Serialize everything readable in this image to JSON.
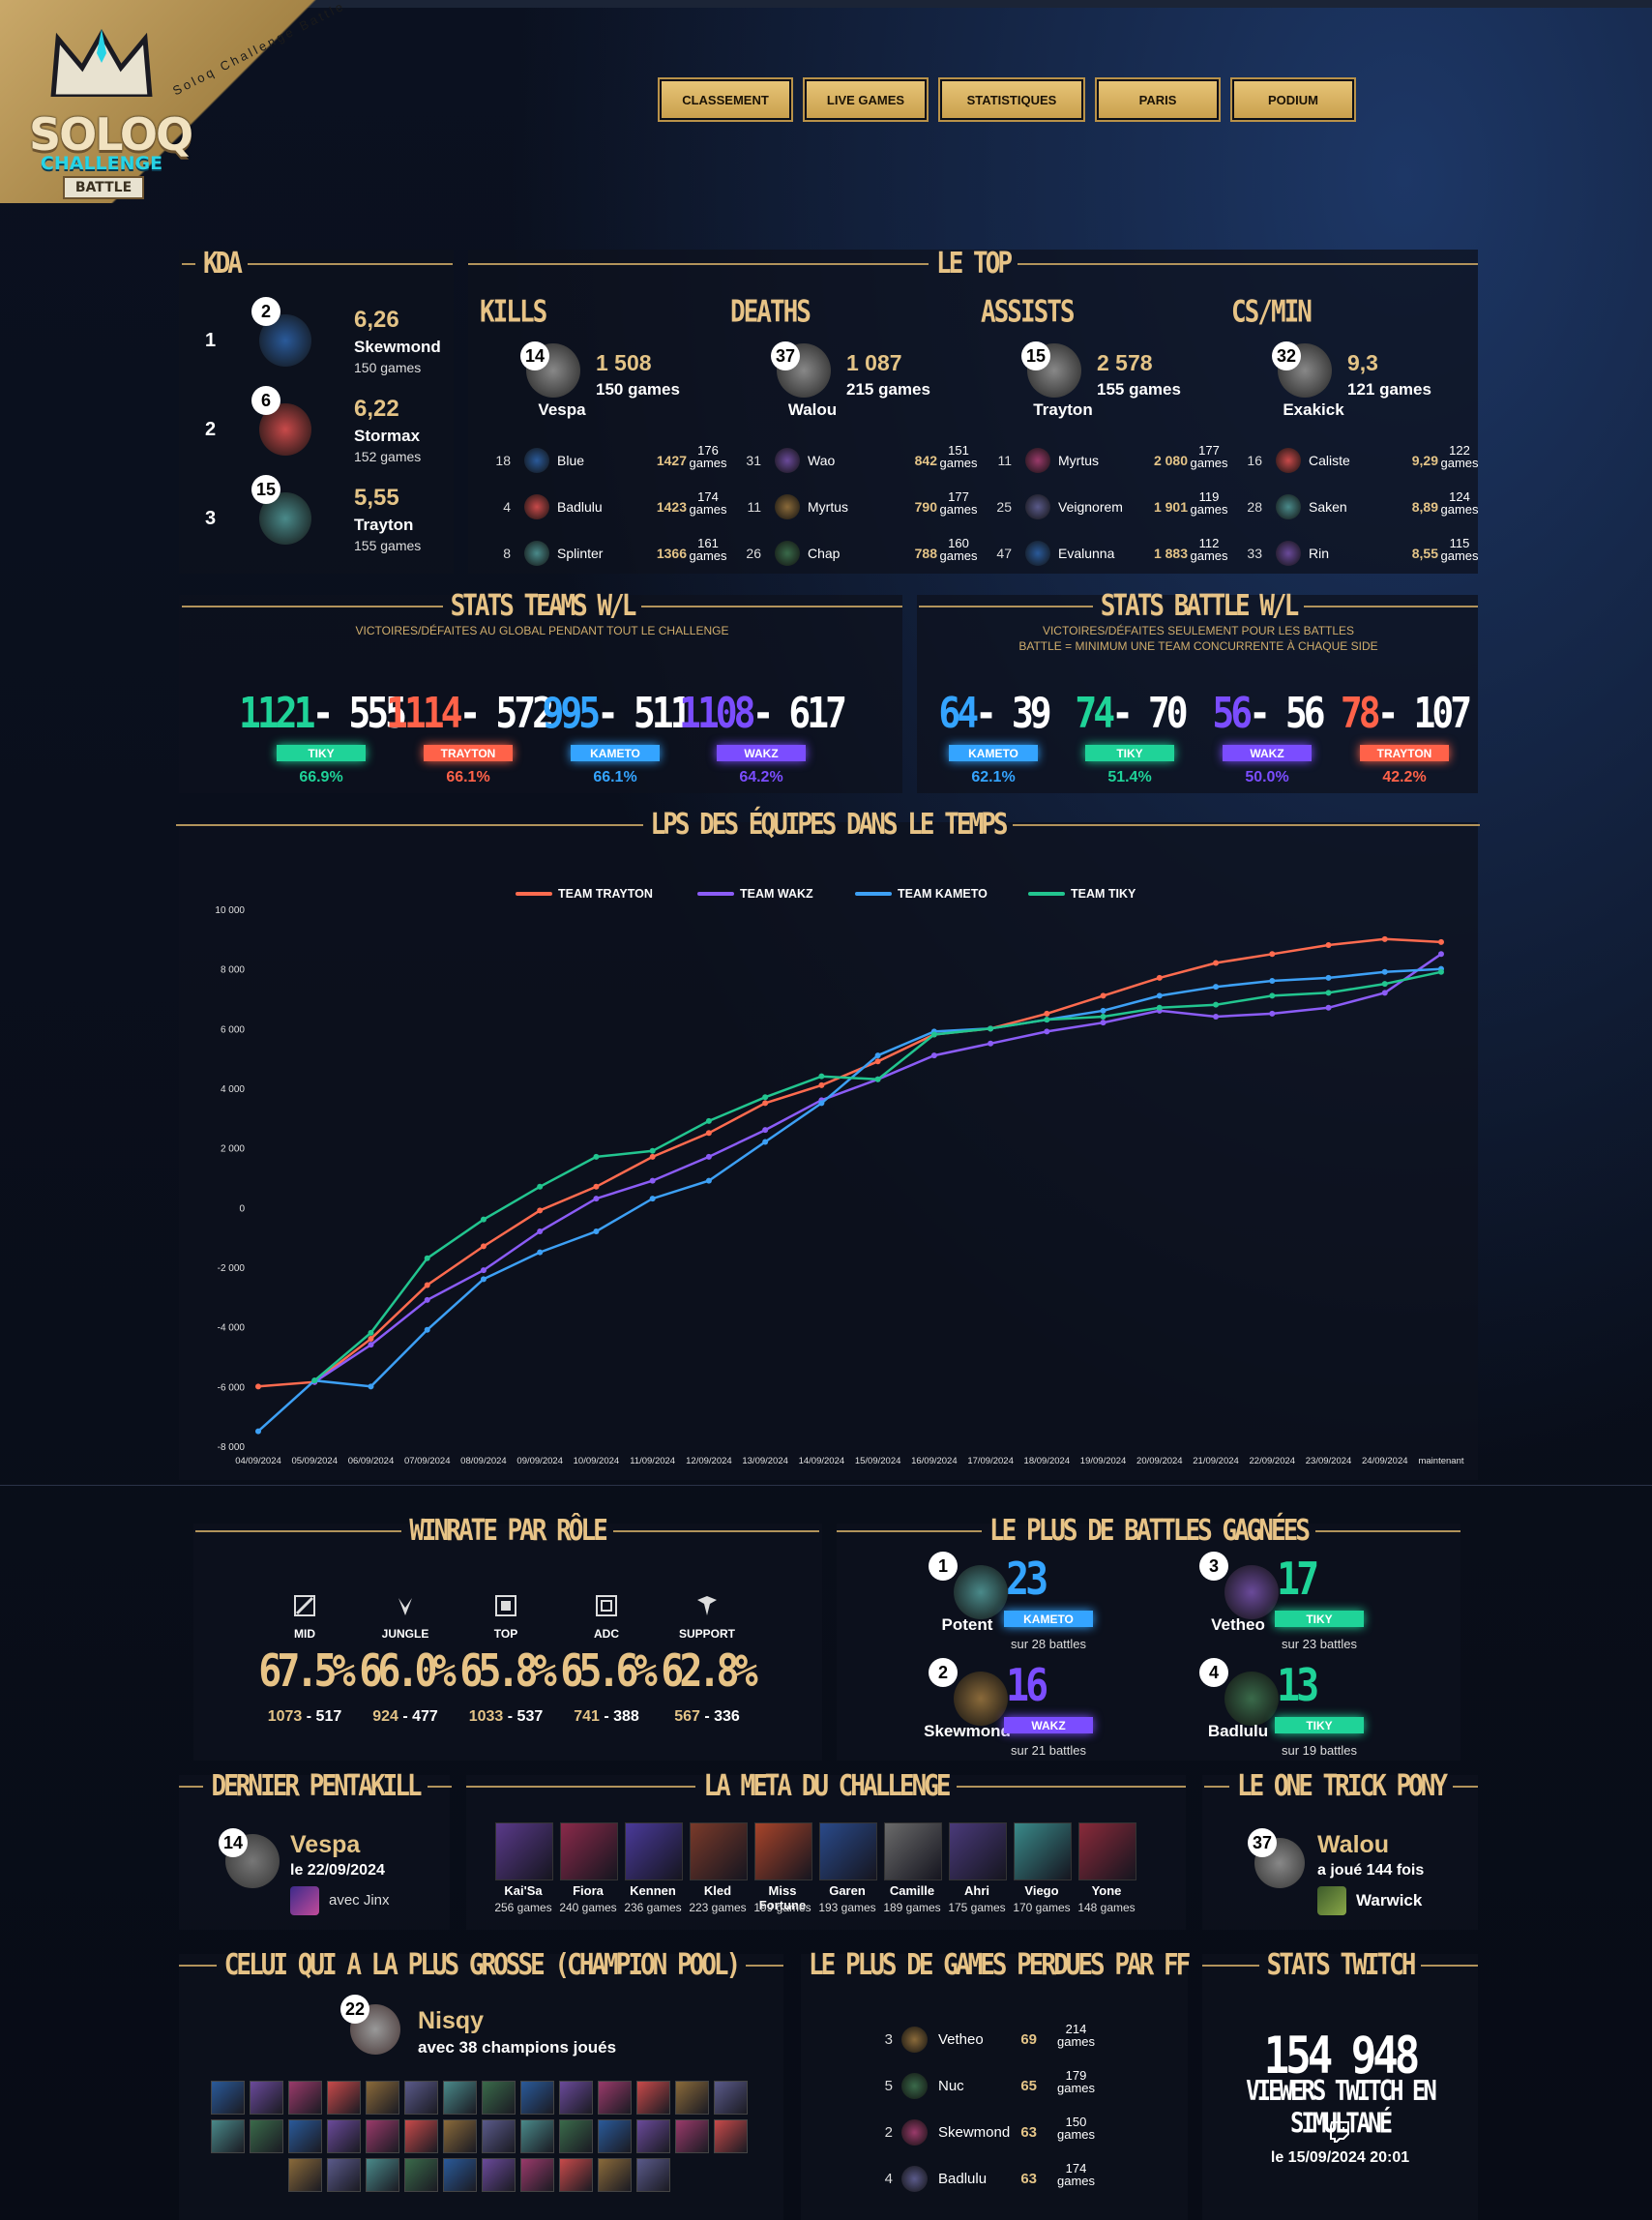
{
  "header": {
    "logo_line1": "SOLOQ",
    "logo_line2": "CHALLENGE",
    "logo_line3": "BATTLE",
    "tagline": "Soloq Challenge Battle",
    "nav": [
      "CLASSEMENT",
      "LIVE GAMES",
      "STATISTIQUES",
      "PARIS",
      "PODIUM"
    ]
  },
  "kda": {
    "title": "KDA",
    "rows": [
      {
        "pos": "1",
        "rank": "2",
        "value": "6,26",
        "name": "Skewmond",
        "games": "150 games"
      },
      {
        "pos": "2",
        "rank": "6",
        "value": "6,22",
        "name": "Stormax",
        "games": "152 games"
      },
      {
        "pos": "3",
        "rank": "15",
        "value": "5,55",
        "name": "Trayton",
        "games": "155 games"
      }
    ]
  },
  "top": {
    "title": "LE TOP",
    "cols": [
      {
        "head": "KILLS",
        "rank": "14",
        "value": "1 508",
        "games": "150 games",
        "name": "Vespa",
        "rows": [
          {
            "rank": "18",
            "name": "Blue",
            "value": "1427",
            "games1": "176",
            "games2": "games"
          },
          {
            "rank": "4",
            "name": "Badlulu",
            "value": "1423",
            "games1": "174",
            "games2": "games"
          },
          {
            "rank": "8",
            "name": "Splinter",
            "value": "1366",
            "games1": "161",
            "games2": "games"
          }
        ]
      },
      {
        "head": "DEATHS",
        "rank": "37",
        "value": "1 087",
        "games": "215 games",
        "name": "Walou",
        "rows": [
          {
            "rank": "31",
            "name": "Wao",
            "value": "842",
            "games1": "151",
            "games2": "games"
          },
          {
            "rank": "11",
            "name": "Myrtus",
            "value": "790",
            "games1": "177",
            "games2": "games"
          },
          {
            "rank": "26",
            "name": "Chap",
            "value": "788",
            "games1": "160",
            "games2": "games"
          }
        ]
      },
      {
        "head": "ASSISTS",
        "rank": "15",
        "value": "2 578",
        "games": "155 games",
        "name": "Trayton",
        "rows": [
          {
            "rank": "11",
            "name": "Myrtus",
            "value": "2 080",
            "games1": "177",
            "games2": "games"
          },
          {
            "rank": "25",
            "name": "Veignorem",
            "value": "1 901",
            "games1": "119",
            "games2": "games"
          },
          {
            "rank": "47",
            "name": "Evalunna",
            "value": "1 883",
            "games1": "112",
            "games2": "games"
          }
        ]
      },
      {
        "head": "CS/MIN",
        "rank": "32",
        "value": "9,3",
        "games": "121 games",
        "name": "Exakick",
        "rows": [
          {
            "rank": "16",
            "name": "Caliste",
            "value": "9,29",
            "games1": "122",
            "games2": "games"
          },
          {
            "rank": "28",
            "name": "Saken",
            "value": "8,89",
            "games1": "124",
            "games2": "games"
          },
          {
            "rank": "33",
            "name": "Rin",
            "value": "8,55",
            "games1": "115",
            "games2": "games"
          }
        ]
      }
    ]
  },
  "teams_wl": {
    "title": "STATS TEAMS W/L",
    "subtitle": "VICTOIRES/DÉFAITES AU GLOBAL PENDANT TOUT LE CHALLENGE",
    "items": [
      {
        "wins": "1121",
        "losses": "- 555",
        "team": "TIKY",
        "pct": "66.9%",
        "color": "#1fd398"
      },
      {
        "wins": "1114",
        "losses": "- 572",
        "team": "TRAYTON",
        "pct": "66.1%",
        "color": "#ff6249"
      },
      {
        "wins": "995",
        "losses": "- 511",
        "team": "KAMETO",
        "pct": "66.1%",
        "color": "#34a4ff"
      },
      {
        "wins": "1108",
        "losses": "- 617",
        "team": "WAKZ",
        "pct": "64.2%",
        "color": "#7b4dff"
      }
    ]
  },
  "battle_wl": {
    "title": "STATS BATTLE W/L",
    "subtitle1": "VICTOIRES/DÉFAITES SEULEMENT POUR LES BATTLES",
    "subtitle2": "BATTLE = MINIMUM UNE TEAM CONCURRENTE À CHAQUE SIDE",
    "items": [
      {
        "wins": "64",
        "losses": "- 39",
        "team": "KAMETO",
        "pct": "62.1%",
        "color": "#34a4ff"
      },
      {
        "wins": "74",
        "losses": "- 70",
        "team": "TIKY",
        "pct": "51.4%",
        "color": "#1fd398"
      },
      {
        "wins": "56",
        "losses": "- 56",
        "team": "WAKZ",
        "pct": "50.0%",
        "color": "#7b4dff"
      },
      {
        "wins": "78",
        "losses": "- 107",
        "team": "TRAYTON",
        "pct": "42.2%",
        "color": "#ff6249"
      }
    ]
  },
  "chart_data": {
    "type": "line",
    "title": "LPS DES ÉQUIPES DANS LE TEMPS",
    "x": [
      "04/09/2024",
      "05/09/2024",
      "06/09/2024",
      "07/09/2024",
      "08/09/2024",
      "09/09/2024",
      "10/09/2024",
      "11/09/2024",
      "12/09/2024",
      "13/09/2024",
      "14/09/2024",
      "15/09/2024",
      "16/09/2024",
      "17/09/2024",
      "18/09/2024",
      "19/09/2024",
      "20/09/2024",
      "21/09/2024",
      "22/09/2024",
      "23/09/2024",
      "24/09/2024",
      "maintenant"
    ],
    "ylim": [
      -8000,
      10000
    ],
    "yticks": [
      "10 000",
      "8 000",
      "6 000",
      "4 000",
      "2 000",
      "0",
      "-2 000",
      "-4 000",
      "-6 000",
      "-8 000"
    ],
    "ytick_values": [
      10000,
      8000,
      6000,
      4000,
      2000,
      0,
      -2000,
      -4000,
      -6000,
      -8000
    ],
    "legend_position": "top",
    "grid": false,
    "series": [
      {
        "name": "TEAM TRAYTON",
        "color": "#ff6b4f",
        "values": [
          -6000,
          -5850,
          -4400,
          -2600,
          -1300,
          -100,
          700,
          1700,
          2500,
          3500,
          4100,
          4900,
          5800,
          6000,
          6500,
          7100,
          7700,
          8200,
          8500,
          8800,
          9000,
          8900
        ]
      },
      {
        "name": "TEAM WAKZ",
        "color": "#8b5cf6",
        "values": [
          null,
          -5850,
          -4600,
          -3100,
          -2100,
          -800,
          300,
          900,
          1700,
          2600,
          3600,
          4300,
          5100,
          5500,
          5900,
          6200,
          6600,
          6400,
          6500,
          6700,
          7200,
          8500
        ]
      },
      {
        "name": "TEAM KAMETO",
        "color": "#3da0f5",
        "values": [
          -7500,
          -5800,
          -6000,
          -4100,
          -2400,
          -1500,
          -800,
          300,
          900,
          2200,
          3500,
          5100,
          5900,
          6000,
          6300,
          6600,
          7100,
          7400,
          7600,
          7700,
          7900,
          8000
        ]
      },
      {
        "name": "TEAM TIKY",
        "color": "#22c58f",
        "values": [
          null,
          -5800,
          -4200,
          -1700,
          -400,
          700,
          1700,
          1900,
          2900,
          3700,
          4400,
          4300,
          5800,
          6000,
          6300,
          6400,
          6700,
          6800,
          7100,
          7200,
          7500,
          7900
        ]
      }
    ]
  },
  "winrate_role": {
    "title": "WINRATE PAR RÔLE",
    "roles": [
      {
        "role": "MID",
        "pct": "67.5%",
        "wins": "1073",
        "losses": " - 517"
      },
      {
        "role": "JUNGLE",
        "pct": "66.0%",
        "wins": "924",
        "losses": " - 477"
      },
      {
        "role": "TOP",
        "pct": "65.8%",
        "wins": "1033",
        "losses": " - 537"
      },
      {
        "role": "ADC",
        "pct": "65.6%",
        "wins": "741",
        "losses": " - 388"
      },
      {
        "role": "SUPPORT",
        "pct": "62.8%",
        "wins": "567",
        "losses": " - 336"
      }
    ]
  },
  "battles_won": {
    "title": "LE PLUS DE BATTLES GAGNÉES",
    "items": [
      {
        "rank": "1",
        "name": "Potent",
        "value": "23",
        "team": "KAMETO",
        "sub": "sur 28 battles",
        "color": "#34a4ff"
      },
      {
        "rank": "3",
        "name": "Vetheo",
        "value": "17",
        "team": "TIKY",
        "sub": "sur 23 battles",
        "color": "#1fd398"
      },
      {
        "rank": "2",
        "name": "Skewmond",
        "value": "16",
        "team": "WAKZ",
        "sub": "sur 21 battles",
        "color": "#7b4dff"
      },
      {
        "rank": "4",
        "name": "Badlulu",
        "value": "13",
        "team": "TIKY",
        "sub": "sur 19 battles",
        "color": "#1fd398"
      }
    ]
  },
  "pentakill": {
    "title": "DERNIER PENTAKILL",
    "rank": "14",
    "name": "Vespa",
    "date": "le 22/09/2024",
    "with": "avec Jinx"
  },
  "meta": {
    "title": "LA META DU CHALLENGE",
    "champions": [
      {
        "name": "Kai'Sa",
        "games": "256 games",
        "color": "#5a3a8a"
      },
      {
        "name": "Fiora",
        "games": "240 games",
        "color": "#8a2a4a"
      },
      {
        "name": "Kennen",
        "games": "236 games",
        "color": "#4a3a9a"
      },
      {
        "name": "Kled",
        "games": "223 games",
        "color": "#7a3a2a"
      },
      {
        "name": "Miss Fortune",
        "games": "199 games",
        "color": "#a8442a"
      },
      {
        "name": "Garen",
        "games": "193 games",
        "color": "#2a4a8a"
      },
      {
        "name": "Camille",
        "games": "189 games",
        "color": "#6a6a6a"
      },
      {
        "name": "Ahri",
        "games": "175 games",
        "color": "#4a3a7a"
      },
      {
        "name": "Viego",
        "games": "170 games",
        "color": "#3a8a8a"
      },
      {
        "name": "Yone",
        "games": "148 games",
        "color": "#8a2a3a"
      }
    ]
  },
  "one_trick": {
    "title": "LE ONE TRICK PONY",
    "rank": "37",
    "name": "Walou",
    "line": "a joué 144 fois",
    "champ": "Warwick"
  },
  "champion_pool": {
    "title": "CELUI QUI A LA PLUS GROSSE (CHAMPION POOL)",
    "rank": "22",
    "name": "Nisqy",
    "line": "avec 38 champions joués"
  },
  "lost_ff": {
    "title": "LE PLUS DE GAMES PERDUES PAR FF",
    "rows": [
      {
        "rank": "3",
        "name": "Vetheo",
        "value": "69",
        "games1": "214",
        "games2": "games"
      },
      {
        "rank": "5",
        "name": "Nuc",
        "value": "65",
        "games1": "179",
        "games2": "games"
      },
      {
        "rank": "2",
        "name": "Skewmond",
        "value": "63",
        "games1": "150",
        "games2": "games"
      },
      {
        "rank": "4",
        "name": "Badlulu",
        "value": "63",
        "games1": "174",
        "games2": "games"
      }
    ]
  },
  "twitch": {
    "title": "STATS TWITCH",
    "value": "154 948",
    "line": "VIEWERS TWITCH EN SIMULTANÉ",
    "date": "le 15/09/2024 20:01"
  }
}
